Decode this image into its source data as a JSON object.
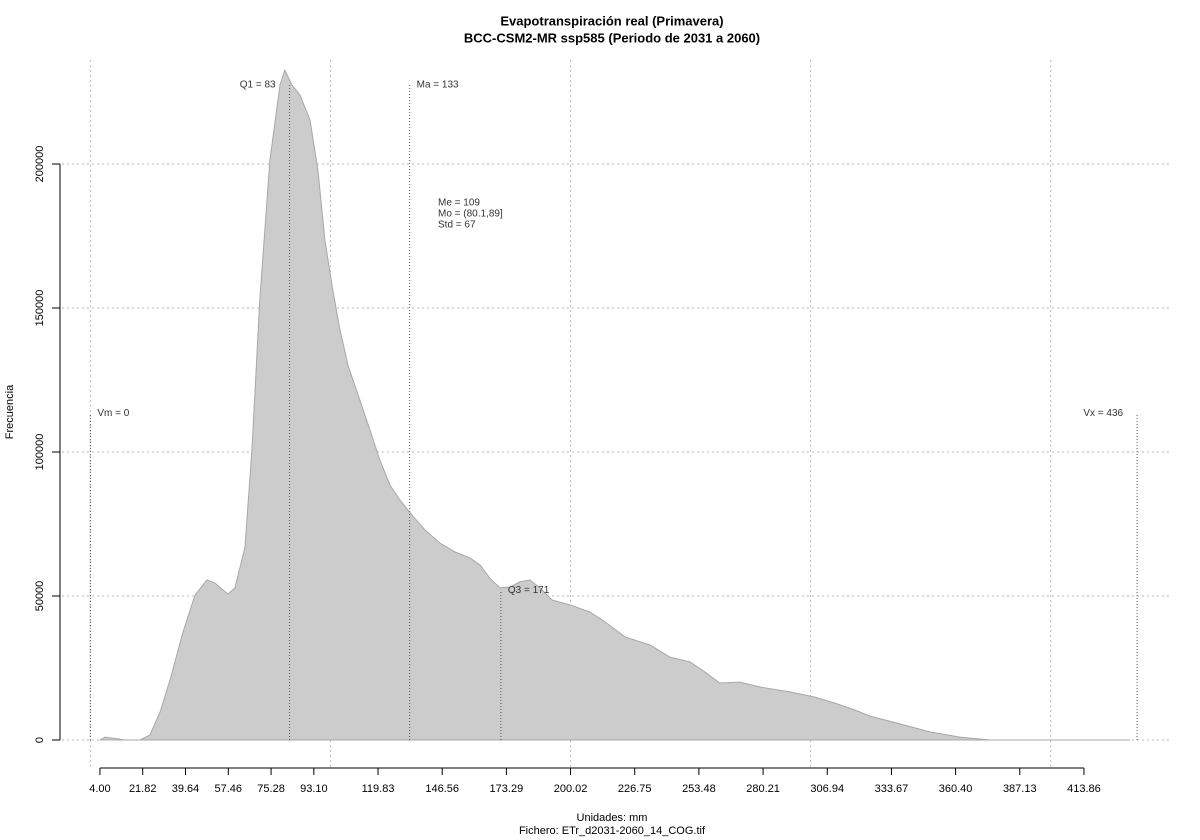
{
  "chart_data": {
    "type": "area",
    "title": "Evapotranspiración real (Primavera)",
    "subtitle": "BCC-CSM2-MR ssp585 (Periodo de 2031 a 2060)",
    "xlabel": "Unidades: mm",
    "caption": "Fichero: ETr_d2031-2060_14_COG.tif",
    "ylabel": "Frecuencia",
    "color": "#cccccc",
    "x": [
      4,
      6.1,
      9,
      14.4,
      20.7,
      24.8,
      29,
      33.2,
      38.6,
      43.6,
      48.6,
      51.9,
      57.3,
      60.2,
      64.4,
      67.3,
      70.6,
      74.8,
      79,
      81,
      84,
      87.3,
      91.5,
      94.8,
      97.7,
      101,
      104,
      107.3,
      112.3,
      116.5,
      120.6,
      124.8,
      129,
      134,
      139.4,
      145.6,
      151.9,
      158.1,
      162.3,
      166.4,
      170.6,
      174.8,
      178.9,
      183.1,
      187.3,
      192.3,
      199.8,
      208.1,
      214.4,
      222.7,
      233.1,
      241.4,
      249.8,
      256,
      262.2,
      270.6,
      278.9,
      291.4,
      301.8,
      310.1,
      318.5,
      324.7,
      337.2,
      349.7,
      362.2,
      374.7,
      433
    ],
    "values": [
      0,
      1000,
      700,
      0,
      0,
      1700,
      9700,
      20800,
      37500,
      50300,
      55600,
      54500,
      50700,
      52800,
      66700,
      100700,
      152800,
      201400,
      227400,
      232600,
      227400,
      224000,
      215300,
      197900,
      173600,
      156200,
      142400,
      130200,
      118000,
      107600,
      97200,
      88500,
      83300,
      78100,
      72900,
      68400,
      65300,
      63200,
      60800,
      56200,
      52800,
      53100,
      54900,
      55600,
      52800,
      48600,
      46900,
      44400,
      41000,
      35800,
      33000,
      28800,
      27100,
      23600,
      19800,
      20100,
      18400,
      16700,
      14900,
      12800,
      10400,
      8300,
      5600,
      2800,
      1000,
      0,
      0
    ],
    "xlim": [
      -11.8,
      449.7
    ],
    "ylim": [
      -9722,
      236111
    ],
    "xticks": [
      {
        "value": 4,
        "label": "4.00"
      },
      21.82,
      39.64,
      57.46,
      75.28,
      {
        "value": 93.1,
        "label": "93.10"
      },
      119.83,
      146.56,
      173.29,
      200.02,
      226.75,
      253.48,
      280.21,
      306.94,
      333.67,
      {
        "value": 360.4,
        "label": "360.40"
      },
      387.13,
      413.86
    ],
    "yticks": [
      0,
      50000,
      100000,
      150000,
      200000
    ],
    "xgrid": [
      0,
      100,
      200,
      300,
      400
    ],
    "grid": true,
    "annotations": [
      {
        "label": "Vm = 0",
        "x": 0,
        "y": 113500,
        "side": "right"
      },
      {
        "label": "Q1 = 83",
        "x": 83,
        "y": 227400,
        "side": "left"
      },
      {
        "label": "Ma = 133",
        "x": 133,
        "y": 227400,
        "side": "right"
      },
      {
        "label": "Q3 = 171",
        "x": 171,
        "y": 52000,
        "side": "right"
      },
      {
        "label": "Vx = 436",
        "x": 436,
        "y": 113500,
        "side": "left"
      }
    ],
    "stats": [
      "Me = 109",
      "Mo = (80.1,89]",
      "Std = 67"
    ]
  }
}
